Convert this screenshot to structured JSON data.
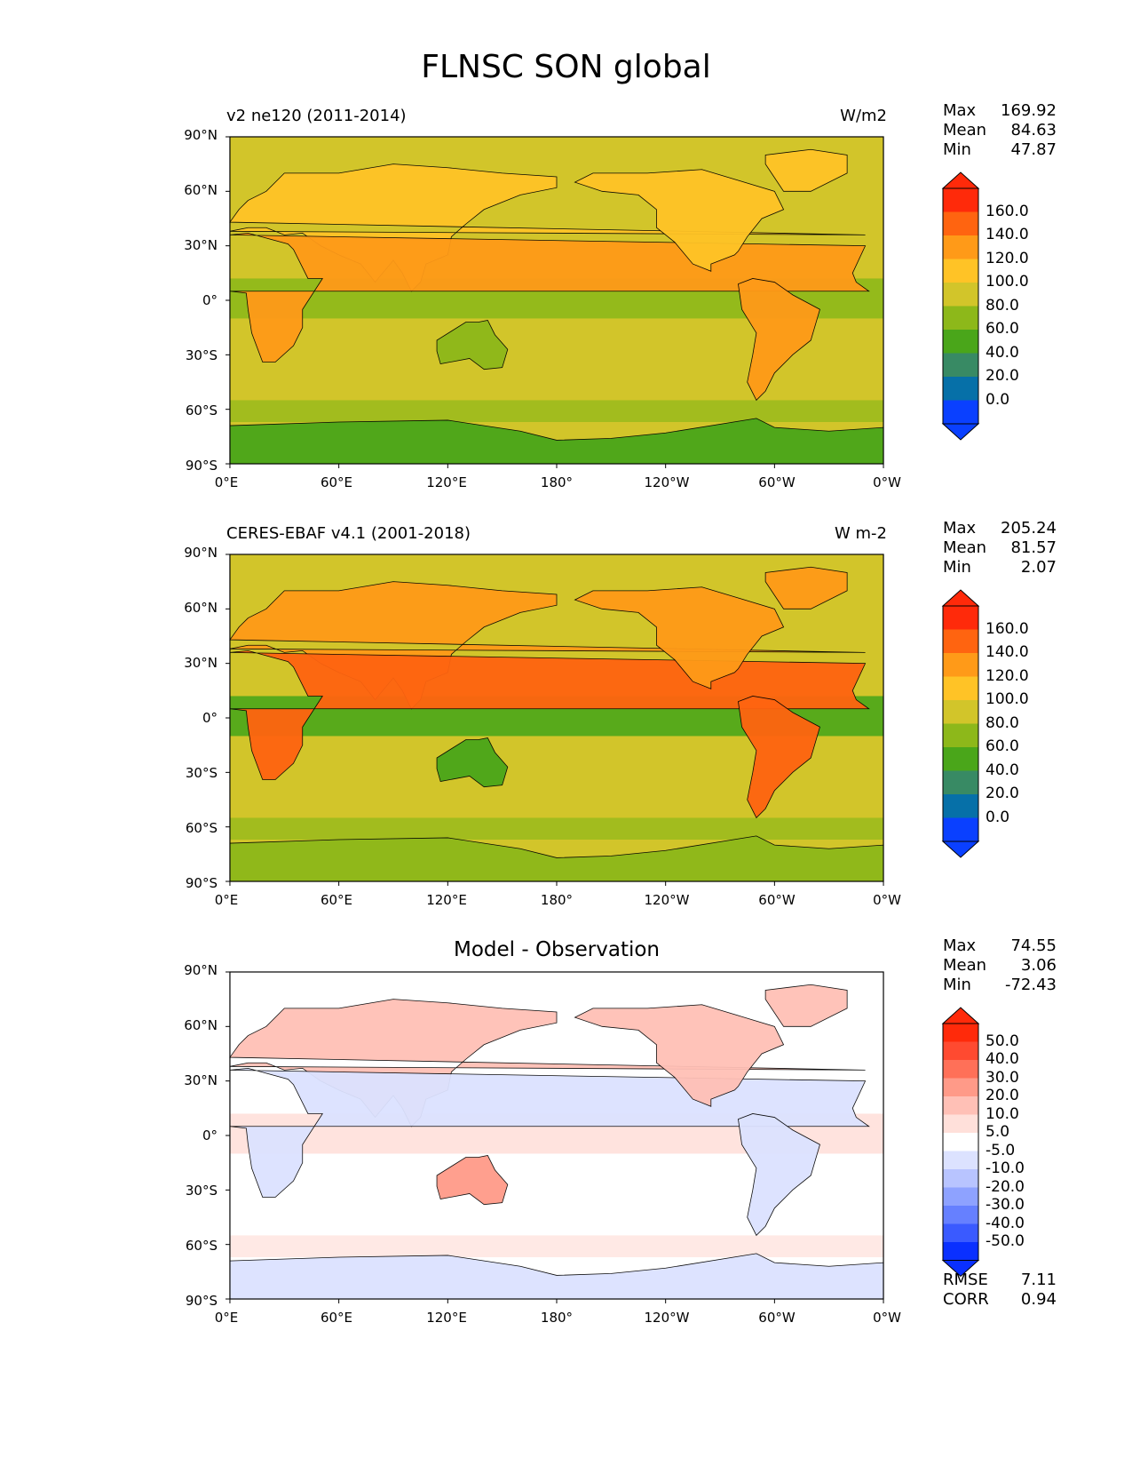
{
  "title": "FLNSC SON global",
  "xticks": [
    "0°E",
    "60°E",
    "120°E",
    "180°",
    "120°W",
    "60°W",
    "0°W"
  ],
  "yticks": [
    "90°N",
    "60°N",
    "30°N",
    "0°",
    "30°S",
    "60°S",
    "90°S"
  ],
  "panels": [
    {
      "left_label": "v2 ne120 (2011-2014)",
      "right_label": "W/m2",
      "stats": {
        "max_label": "Max",
        "max": "169.92",
        "mean_label": "Mean",
        "mean": "84.63",
        "min_label": "Min",
        "min": "47.87"
      },
      "colorbar": {
        "labels": [
          "160.0",
          "140.0",
          "120.0",
          "100.0",
          "80.0",
          "60.0",
          "40.0",
          "20.0",
          "0.0"
        ],
        "colors": [
          "#ff2a0a",
          "#ff6410",
          "#ff9a18",
          "#ffc326",
          "#d2c52a",
          "#8db81a",
          "#4aa61a",
          "#388a64",
          "#0670a8",
          "#0a40ff"
        ]
      }
    },
    {
      "left_label": "CERES-EBAF v4.1 (2001-2018)",
      "right_label": "W m-2",
      "stats": {
        "max_label": "Max",
        "max": "205.24",
        "mean_label": "Mean",
        "mean": "81.57",
        "min_label": "Min",
        "min": "2.07"
      },
      "colorbar": {
        "labels": [
          "160.0",
          "140.0",
          "120.0",
          "100.0",
          "80.0",
          "60.0",
          "40.0",
          "20.0",
          "0.0"
        ],
        "colors": [
          "#ff2a0a",
          "#ff6410",
          "#ff9a18",
          "#ffc326",
          "#d2c52a",
          "#8db81a",
          "#4aa61a",
          "#388a64",
          "#0670a8",
          "#0a40ff"
        ]
      }
    },
    {
      "center_title": "Model - Observation",
      "stats": {
        "max_label": "Max",
        "max": "74.55",
        "mean_label": "Mean",
        "mean": "3.06",
        "min_label": "Min",
        "min": "-72.43"
      },
      "colorbar": {
        "labels": [
          "50.0",
          "40.0",
          "30.0",
          "20.0",
          "10.0",
          "5.0",
          "-5.0",
          "-10.0",
          "-20.0",
          "-30.0",
          "-40.0",
          "-50.0"
        ],
        "colors": [
          "#ff2a0a",
          "#ff4a30",
          "#ff7058",
          "#ff9a88",
          "#ffc0b6",
          "#ffe0da",
          "#ffffff",
          "#dce2ff",
          "#b8c4ff",
          "#8ea2ff",
          "#6680ff",
          "#3a5aff",
          "#0a30ff"
        ]
      },
      "rmse_label": "RMSE",
      "rmse": "7.11",
      "corr_label": "CORR",
      "corr": "0.94"
    }
  ]
}
